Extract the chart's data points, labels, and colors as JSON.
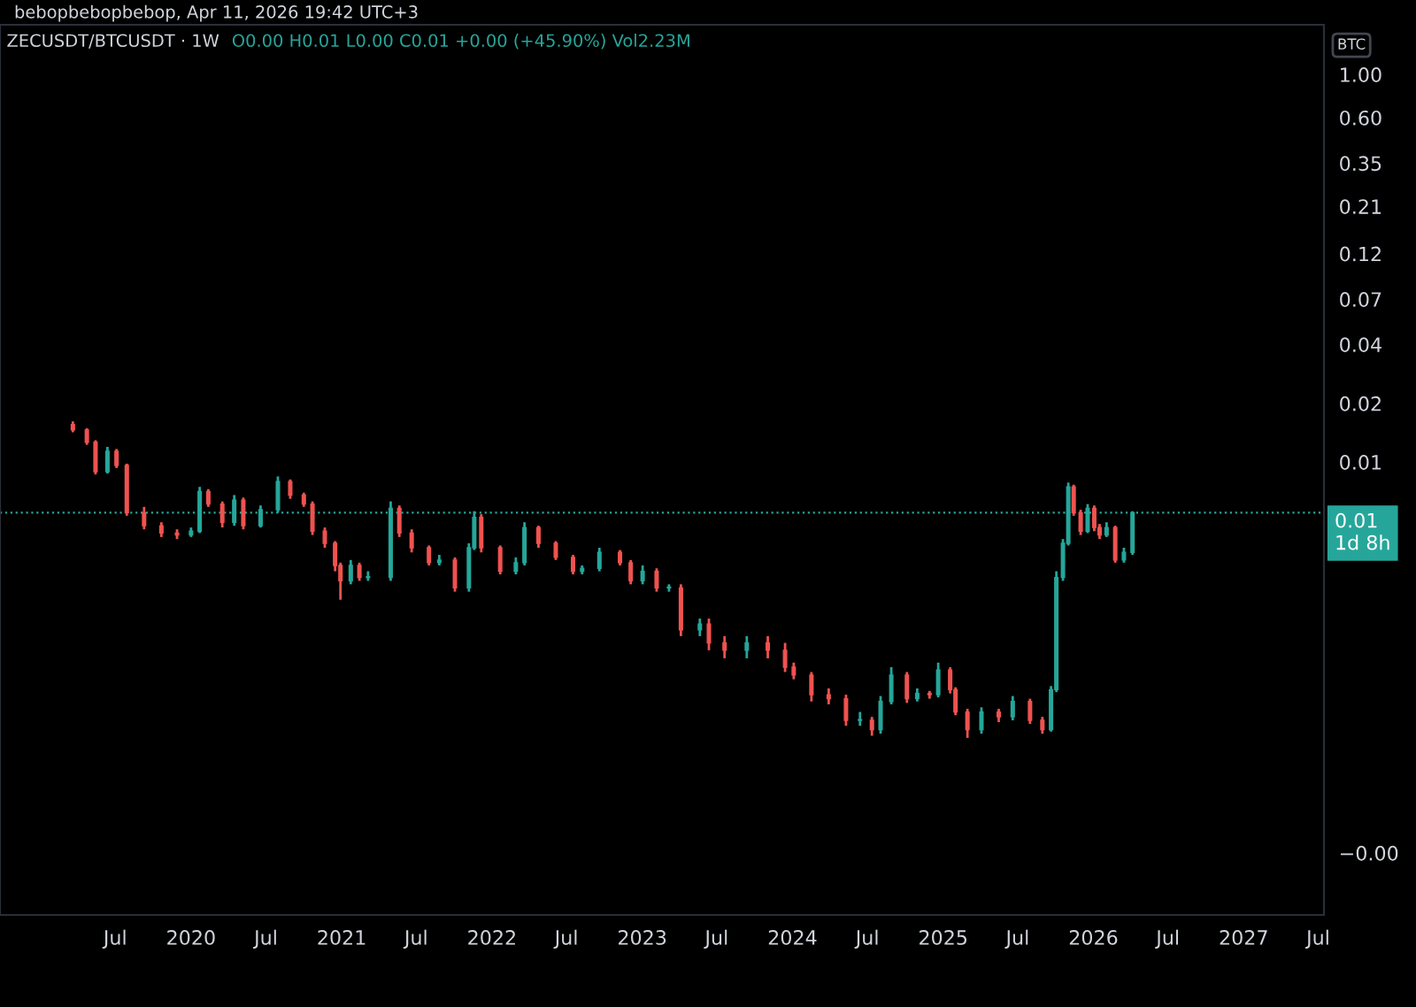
{
  "chart_data": {
    "type": "candlestick",
    "title": "ZECUSDT/BTCUSDT · 1W",
    "subtitle": "O0.00 H0.01 L0.00 C0.01 +0.00 (+45.90%) Vol2.23M",
    "annotations": [
      "bebopbebopbebop, Apr 11, 2026 19:42 UTC+3"
    ],
    "ylabel": "BTC",
    "log": true,
    "x": [
      "2019-03-20",
      "2019-04-23",
      "2019-05-14",
      "2019-06-12",
      "2019-07-04",
      "2019-07-29",
      "2019-09-09",
      "2019-10-21",
      "2019-11-28",
      "2020-01-01",
      "2020-01-22",
      "2020-02-12",
      "2020-03-17",
      "2020-04-15",
      "2020-05-07",
      "2020-06-18",
      "2020-07-30",
      "2020-08-29",
      "2020-10-01",
      "2020-10-22",
      "2020-11-21",
      "2020-12-16",
      "2020-12-29",
      "2021-01-23",
      "2021-02-13",
      "2021-03-06",
      "2021-04-30",
      "2021-05-21",
      "2021-06-20",
      "2021-08-01",
      "2021-08-26",
      "2021-10-03",
      "2021-11-06",
      "2021-11-19",
      "2021-12-06",
      "2022-01-21",
      "2022-02-28",
      "2022-03-21",
      "2022-04-24",
      "2022-06-05",
      "2022-07-17",
      "2022-08-08",
      "2022-09-19",
      "2022-11-08",
      "2022-12-04",
      "2023-01-02",
      "2023-02-05",
      "2023-03-07",
      "2023-04-05",
      "2023-05-21",
      "2023-06-12",
      "2023-07-20",
      "2023-09-12",
      "2023-11-02",
      "2023-12-14",
      "2024-01-04",
      "2024-02-16",
      "2024-03-29",
      "2024-05-10",
      "2024-06-13",
      "2024-07-12",
      "2024-08-02",
      "2024-08-28",
      "2024-10-05",
      "2024-10-30",
      "2024-11-29",
      "2024-12-20",
      "2025-01-18",
      "2025-01-31",
      "2025-03-01",
      "2025-04-04",
      "2025-05-16",
      "2025-06-19",
      "2025-07-31",
      "2025-08-30",
      "2025-09-20",
      "2025-10-03",
      "2025-10-19",
      "2025-11-01",
      "2025-11-14",
      "2025-12-01",
      "2025-12-18",
      "2026-01-03",
      "2026-01-16",
      "2026-02-02",
      "2026-02-23",
      "2026-03-16",
      "2026-04-06"
    ],
    "ohlc": [
      [
        0.0159,
        0.0165,
        0.0145,
        0.0149
      ],
      [
        0.0149,
        0.0152,
        0.0125,
        0.0129
      ],
      [
        0.0129,
        0.0132,
        0.0088,
        0.0091
      ],
      [
        0.0091,
        0.0122,
        0.0089,
        0.0116
      ],
      [
        0.0116,
        0.0119,
        0.0095,
        0.0098
      ],
      [
        0.0098,
        0.01,
        0.0054,
        0.0056
      ],
      [
        0.0056,
        0.006,
        0.0046,
        0.0048
      ],
      [
        0.0048,
        0.005,
        0.0042,
        0.0044
      ],
      [
        0.0044,
        0.0046,
        0.0041,
        0.0043
      ],
      [
        0.0043,
        0.0047,
        0.0042,
        0.0045
      ],
      [
        0.0045,
        0.0076,
        0.0044,
        0.0072
      ],
      [
        0.0072,
        0.0074,
        0.006,
        0.0062
      ],
      [
        0.0062,
        0.0064,
        0.0047,
        0.005
      ],
      [
        0.005,
        0.0069,
        0.0048,
        0.0065
      ],
      [
        0.0065,
        0.0067,
        0.0046,
        0.0048
      ],
      [
        0.0048,
        0.0061,
        0.0047,
        0.0058
      ],
      [
        0.0058,
        0.0086,
        0.0056,
        0.0081
      ],
      [
        0.0081,
        0.0083,
        0.0066,
        0.0069
      ],
      [
        0.0069,
        0.0071,
        0.006,
        0.0062
      ],
      [
        0.0062,
        0.0064,
        0.0043,
        0.0045
      ],
      [
        0.0045,
        0.0047,
        0.0037,
        0.0039
      ],
      [
        0.0039,
        0.004,
        0.0028,
        0.003
      ],
      [
        0.003,
        0.0031,
        0.002,
        0.0025
      ],
      [
        0.0025,
        0.0032,
        0.0024,
        0.003
      ],
      [
        0.003,
        0.0031,
        0.0025,
        0.0026
      ],
      [
        0.0026,
        0.0028,
        0.0025,
        0.0026
      ],
      [
        0.0026,
        0.0064,
        0.0025,
        0.0059
      ],
      [
        0.0059,
        0.0061,
        0.0042,
        0.0044
      ],
      [
        0.0044,
        0.0046,
        0.0035,
        0.0037
      ],
      [
        0.0037,
        0.0038,
        0.003,
        0.0031
      ],
      [
        0.0031,
        0.0034,
        0.003,
        0.0032
      ],
      [
        0.0032,
        0.0033,
        0.0022,
        0.0023
      ],
      [
        0.0023,
        0.0039,
        0.0022,
        0.0037
      ],
      [
        0.0037,
        0.0057,
        0.0036,
        0.0053
      ],
      [
        0.0053,
        0.0055,
        0.0035,
        0.0037
      ],
      [
        0.0037,
        0.0038,
        0.0027,
        0.0028
      ],
      [
        0.0028,
        0.0033,
        0.0027,
        0.0031
      ],
      [
        0.0031,
        0.005,
        0.003,
        0.0047
      ],
      [
        0.0047,
        0.0048,
        0.0037,
        0.0039
      ],
      [
        0.0039,
        0.004,
        0.0032,
        0.0033
      ],
      [
        0.0033,
        0.0034,
        0.0027,
        0.0028
      ],
      [
        0.0028,
        0.003,
        0.0027,
        0.0029
      ],
      [
        0.0029,
        0.0037,
        0.0028,
        0.0035
      ],
      [
        0.0035,
        0.0036,
        0.003,
        0.0031
      ],
      [
        0.0031,
        0.0032,
        0.0024,
        0.0025
      ],
      [
        0.0025,
        0.003,
        0.0024,
        0.0028
      ],
      [
        0.0028,
        0.0029,
        0.0022,
        0.0023
      ],
      [
        0.0023,
        0.0024,
        0.0022,
        0.0023
      ],
      [
        0.0023,
        0.0024,
        0.0013,
        0.0014
      ],
      [
        0.0014,
        0.0016,
        0.0013,
        0.0015
      ],
      [
        0.0015,
        0.0016,
        0.0011,
        0.0012
      ],
      [
        0.0012,
        0.0013,
        0.001,
        0.0011
      ],
      [
        0.0011,
        0.0013,
        0.001,
        0.0012
      ],
      [
        0.0012,
        0.0013,
        0.001,
        0.0011
      ],
      [
        0.0011,
        0.0012,
        0.00085,
        0.0009
      ],
      [
        0.0009,
        0.00095,
        0.00078,
        0.00082
      ],
      [
        0.00082,
        0.00085,
        0.0006,
        0.00065
      ],
      [
        0.00065,
        0.0007,
        0.00058,
        0.00062
      ],
      [
        0.00062,
        0.00065,
        0.00045,
        0.00048
      ],
      [
        0.00048,
        0.00053,
        0.00045,
        0.00048
      ],
      [
        0.00048,
        0.0005,
        0.0004,
        0.00043
      ],
      [
        0.00043,
        0.00064,
        0.00041,
        0.0006
      ],
      [
        0.0006,
        0.0009,
        0.00058,
        0.00082
      ],
      [
        0.00082,
        0.00085,
        0.00059,
        0.00062
      ],
      [
        0.00062,
        0.0007,
        0.0006,
        0.00066
      ],
      [
        0.00066,
        0.00068,
        0.00062,
        0.00065
      ],
      [
        0.00065,
        0.00095,
        0.00063,
        0.00087
      ],
      [
        0.00087,
        0.0009,
        0.00066,
        0.00069
      ],
      [
        0.00069,
        0.00071,
        0.00051,
        0.00053
      ],
      [
        0.00053,
        0.00055,
        0.00039,
        0.00043
      ],
      [
        0.00043,
        0.00056,
        0.00041,
        0.00053
      ],
      [
        0.00053,
        0.00055,
        0.00047,
        0.0005
      ],
      [
        0.0005,
        0.00064,
        0.00048,
        0.0006
      ],
      [
        0.0006,
        0.00062,
        0.00046,
        0.00048
      ],
      [
        0.00048,
        0.0005,
        0.00041,
        0.00043
      ],
      [
        0.00043,
        0.00072,
        0.00042,
        0.00069
      ],
      [
        0.00069,
        0.0028,
        0.00067,
        0.0026
      ],
      [
        0.0026,
        0.0041,
        0.0025,
        0.0039
      ],
      [
        0.0039,
        0.008,
        0.0038,
        0.0076
      ],
      [
        0.0076,
        0.0078,
        0.0054,
        0.0056
      ],
      [
        0.0056,
        0.0058,
        0.0043,
        0.0045
      ],
      [
        0.0045,
        0.0062,
        0.0044,
        0.0059
      ],
      [
        0.0059,
        0.0061,
        0.0045,
        0.0047
      ],
      [
        0.0047,
        0.0049,
        0.0041,
        0.0043
      ],
      [
        0.0043,
        0.005,
        0.0042,
        0.0047
      ],
      [
        0.0047,
        0.0048,
        0.0031,
        0.0032
      ],
      [
        0.0032,
        0.0037,
        0.0031,
        0.0035
      ],
      [
        0.0035,
        0.0057,
        0.0034,
        0.0056
      ]
    ],
    "xlim": [
      "2018-09-24",
      "2027-07-15"
    ],
    "xticks": [
      {
        "value": "2019-07-01",
        "label": "Jul"
      },
      {
        "value": "2020-01-01",
        "label": "2020"
      },
      {
        "value": "2020-07-01",
        "label": "Jul"
      },
      {
        "value": "2021-01-01",
        "label": "2021"
      },
      {
        "value": "2021-07-01",
        "label": "Jul"
      },
      {
        "value": "2022-01-01",
        "label": "2022"
      },
      {
        "value": "2022-07-01",
        "label": "Jul"
      },
      {
        "value": "2023-01-01",
        "label": "2023"
      },
      {
        "value": "2023-07-01",
        "label": "Jul"
      },
      {
        "value": "2024-01-01",
        "label": "2024"
      },
      {
        "value": "2024-07-01",
        "label": "Jul"
      },
      {
        "value": "2025-01-01",
        "label": "2025"
      },
      {
        "value": "2025-07-01",
        "label": "Jul"
      },
      {
        "value": "2026-01-01",
        "label": "2026"
      },
      {
        "value": "2026-07-01",
        "label": "Jul"
      },
      {
        "value": "2027-01-01",
        "label": "2027"
      },
      {
        "value": "2027-07-01",
        "label": "Jul"
      }
    ],
    "ylim": [
      4.8e-05,
      1.8
    ],
    "yticks": [
      {
        "value": 1,
        "label": "1.00"
      },
      {
        "value": 0.6,
        "label": "0.60"
      },
      {
        "value": 0.35,
        "label": "0.35"
      },
      {
        "value": 0.21,
        "label": "0.21"
      },
      {
        "value": 0.12,
        "label": "0.12"
      },
      {
        "value": 0.07,
        "label": "0.07"
      },
      {
        "value": 0.041,
        "label": "0.04"
      },
      {
        "value": 0.0204,
        "label": "0.02"
      },
      {
        "value": 0.0102,
        "label": "0.01"
      },
      {
        "value": 0.0001,
        "label": "−0.00"
      }
    ],
    "ref_lines": [
      {
        "axis": "y",
        "value": 0.0056,
        "label": "0.01\n1d 8h",
        "color": "#26a69a",
        "line_style": "dotted"
      }
    ],
    "grid": false
  }
}
